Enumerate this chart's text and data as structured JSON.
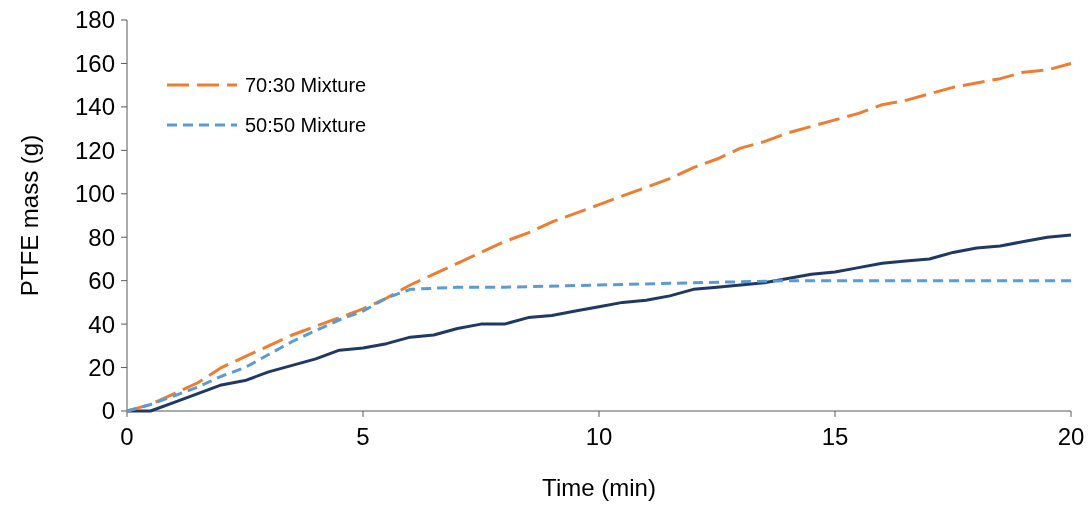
{
  "chart_data": {
    "type": "line",
    "xlabel": "Time (min)",
    "ylabel": "PTFE mass (g)",
    "xlim": [
      0,
      20
    ],
    "xticks": [
      0,
      5,
      10,
      15,
      20
    ],
    "ylim": [
      0,
      180
    ],
    "yticks": [
      0,
      20,
      40,
      60,
      80,
      100,
      120,
      140,
      160,
      180
    ],
    "grid": false,
    "legend": "top left",
    "marker": "none",
    "series": [
      {
        "color": "#203864",
        "line_style": "solid",
        "x": [
          0,
          0.5,
          1,
          1.5,
          2,
          2.5,
          3,
          3.5,
          4,
          4.5,
          5,
          5.5,
          6,
          6.5,
          7,
          7.5,
          8,
          8.5,
          9,
          9.5,
          10,
          10.5,
          11,
          11.5,
          12,
          12.5,
          13,
          13.5,
          14,
          14.5,
          15,
          15.5,
          16,
          16.5,
          17,
          17.5,
          18,
          18.5,
          19,
          19.5,
          20
        ],
        "values": [
          0,
          0,
          4,
          8,
          12,
          14,
          18,
          21,
          24,
          28,
          29,
          31,
          34,
          35,
          38,
          40,
          40,
          43,
          44,
          46,
          48,
          50,
          51,
          53,
          56,
          57,
          58,
          59,
          61,
          63,
          64,
          66,
          68,
          69,
          70,
          73,
          75,
          76,
          78,
          80,
          81
        ]
      },
      {
        "name": "70:30 Mixture",
        "color": "#ed7d31",
        "line_style": "dashed",
        "x": [
          0,
          0.5,
          1,
          1.5,
          2,
          2.5,
          3,
          3.5,
          4,
          4.5,
          5,
          5.5,
          6,
          6.5,
          7,
          7.5,
          8,
          8.5,
          9,
          9.5,
          10,
          10.5,
          11,
          11.5,
          12,
          12.5,
          13,
          13.5,
          14,
          14.5,
          15,
          15.5,
          16,
          16.5,
          17,
          17.5,
          18,
          18.5,
          19,
          19.5,
          20
        ],
        "values": [
          0,
          3,
          8,
          13,
          20,
          25,
          30,
          35,
          39,
          43,
          47,
          52,
          58,
          63,
          68,
          73,
          78,
          82,
          87,
          91,
          95,
          99,
          103,
          107,
          112,
          116,
          121,
          124,
          128,
          131,
          134,
          137,
          141,
          143,
          146,
          149,
          151,
          153,
          156,
          157,
          160
        ]
      },
      {
        "name": "50:50 Mixture",
        "color": "#5b9bd5",
        "line_style": "dotted",
        "x": [
          0,
          0.5,
          1,
          1.5,
          2,
          2.5,
          3,
          3.5,
          4,
          4.5,
          5,
          5.5,
          6,
          6.5,
          7,
          8,
          10,
          12,
          14,
          16,
          18,
          20
        ],
        "values": [
          0,
          3,
          7,
          11,
          16,
          20,
          26,
          32,
          37,
          42,
          46,
          52,
          56,
          56.5,
          57,
          57,
          58,
          59,
          60,
          60,
          60,
          60
        ]
      }
    ]
  }
}
